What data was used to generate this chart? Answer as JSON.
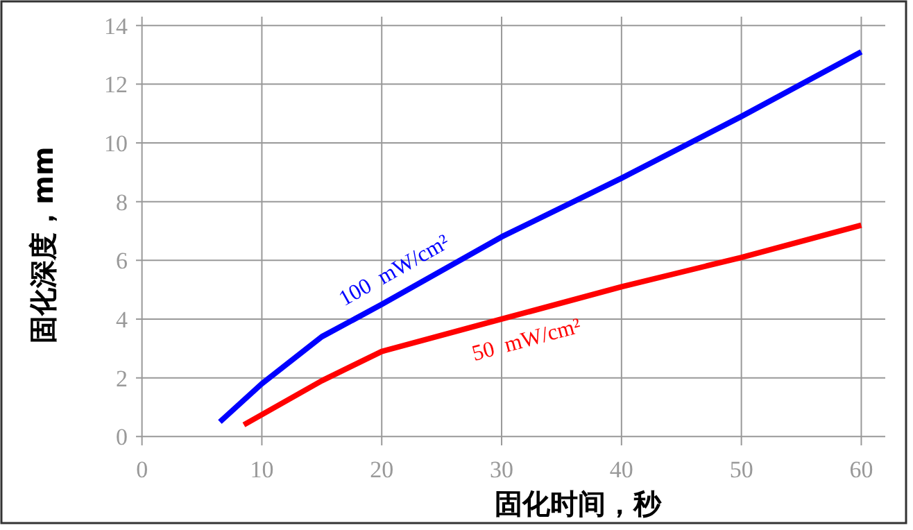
{
  "chart_data": {
    "type": "line",
    "xlabel": "固化时间，秒",
    "ylabel": "固化深度，mm",
    "grid": true,
    "line_style": "solid",
    "xlim": [
      -0.5,
      62
    ],
    "ylim": [
      -0.3,
      14.3
    ],
    "xticks": [
      0,
      10,
      20,
      30,
      40,
      50,
      60
    ],
    "yticks": [
      0,
      2,
      4,
      6,
      8,
      10,
      12,
      14
    ],
    "series": [
      {
        "name": "100  mW/cm²",
        "color": "#0000ff",
        "x": [
          6.5,
          10,
          15,
          20,
          30,
          40,
          50,
          60
        ],
        "values": [
          0.5,
          1.8,
          3.4,
          4.5,
          6.8,
          8.8,
          10.9,
          13.1
        ]
      },
      {
        "name": "50  mW/cm²",
        "color": "#ff0000",
        "x": [
          8.5,
          15,
          20,
          30,
          40,
          50,
          60
        ],
        "values": [
          0.4,
          1.9,
          2.9,
          4.0,
          5.1,
          6.1,
          7.2
        ]
      }
    ]
  }
}
